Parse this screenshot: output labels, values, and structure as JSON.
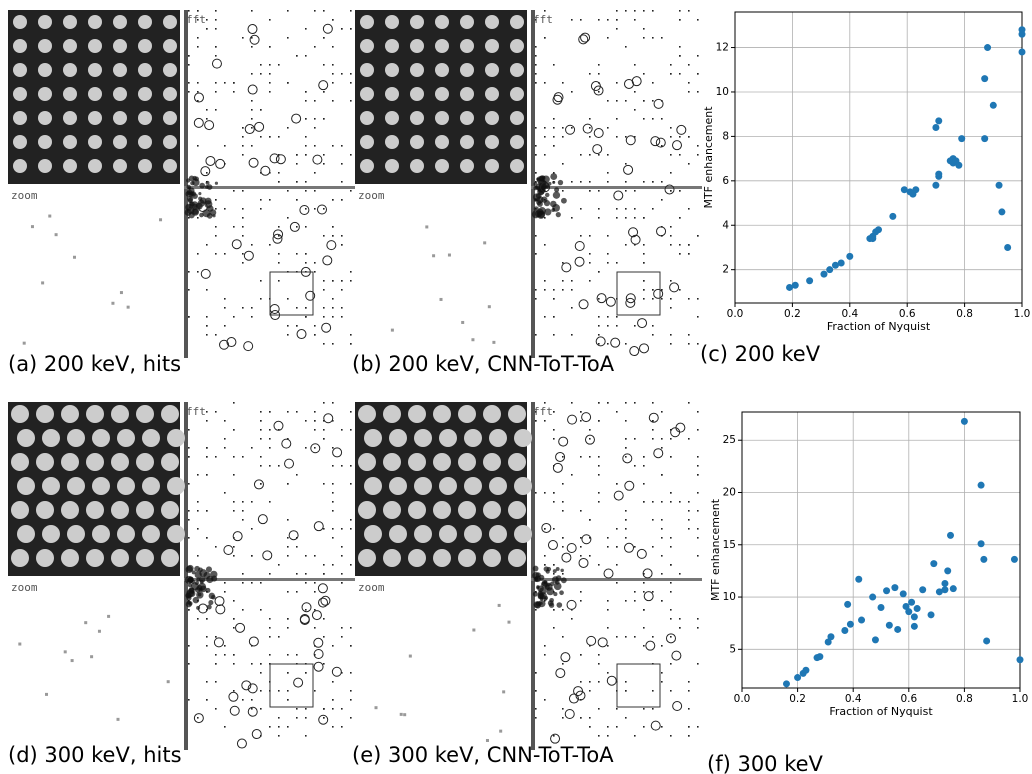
{
  "image_panels": [
    {
      "caption": "(a) 200 keV, hits",
      "zoom_label": "zoom",
      "fft_label": "fft"
    },
    {
      "caption": "(b) 200 keV, CNN-ToT-ToA",
      "zoom_label": "zoom",
      "fft_label": "fft"
    },
    {
      "caption": "(d) 300 keV, hits",
      "zoom_label": "zoom",
      "fft_label": "fft"
    },
    {
      "caption": "(e) 300 keV, CNN-ToT-ToA",
      "zoom_label": "zoom",
      "fft_label": "fft"
    }
  ],
  "chart_data": [
    {
      "type": "scatter",
      "caption": "(c) 200 keV",
      "xlabel": "Fraction of Nyquist",
      "ylabel": "MTF enhancement",
      "color": "#1f77b4",
      "grid": true,
      "xlim": [
        0,
        1
      ],
      "ylim": [
        0.5,
        13.6
      ],
      "xticks": [
        {
          "value": 0,
          "label": "0.0"
        },
        0.2,
        0.4,
        0.6,
        0.8,
        {
          "value": 1,
          "label": "1.0"
        }
      ],
      "yticks": [
        2,
        4,
        6,
        8,
        10,
        12
      ],
      "x": [
        0.19,
        0.21,
        0.26,
        0.31,
        0.33,
        0.35,
        0.37,
        0.4,
        0.47,
        0.48,
        0.49,
        0.5,
        0.48,
        0.55,
        0.59,
        0.61,
        0.62,
        0.63,
        0.7,
        0.71,
        0.71,
        0.7,
        0.71,
        0.75,
        0.76,
        0.76,
        0.77,
        0.78,
        0.79,
        0.87,
        0.87,
        0.88,
        0.9,
        0.92,
        0.93,
        0.95,
        1.0,
        1.0,
        1.0
      ],
      "values": [
        1.2,
        1.3,
        1.5,
        1.8,
        2.0,
        2.2,
        2.3,
        2.6,
        3.4,
        3.5,
        3.7,
        3.8,
        3.4,
        4.4,
        5.6,
        5.5,
        5.4,
        5.6,
        5.8,
        6.2,
        6.3,
        8.4,
        8.7,
        6.9,
        7.0,
        6.8,
        6.9,
        6.7,
        7.9,
        7.9,
        10.6,
        12.0,
        9.4,
        5.8,
        4.6,
        3.0,
        12.8,
        11.8,
        12.6
      ]
    },
    {
      "type": "scatter",
      "caption": "(f) 300 keV",
      "xlabel": "Fraction of Nyquist",
      "ylabel": "MTF enhancement",
      "color": "#1f77b4",
      "grid": true,
      "xlim": [
        0,
        1
      ],
      "ylim": [
        1.3,
        27.7
      ],
      "xticks": [
        {
          "value": 0,
          "label": "0.0"
        },
        0.2,
        0.4,
        0.6,
        0.8,
        {
          "value": 1,
          "label": "1.0"
        }
      ],
      "yticks": [
        5,
        10,
        15,
        20,
        25
      ],
      "x": [
        0.16,
        0.2,
        0.22,
        0.23,
        0.27,
        0.28,
        0.31,
        0.32,
        0.37,
        0.38,
        0.39,
        0.42,
        0.43,
        0.47,
        0.48,
        0.5,
        0.52,
        0.53,
        0.55,
        0.56,
        0.58,
        0.59,
        0.6,
        0.61,
        0.62,
        0.62,
        0.63,
        0.65,
        0.68,
        0.69,
        0.71,
        0.73,
        0.73,
        0.74,
        0.75,
        0.76,
        0.8,
        0.86,
        0.86,
        0.87,
        0.88,
        0.98,
        1.0
      ],
      "values": [
        1.7,
        2.3,
        2.7,
        3.0,
        4.2,
        4.3,
        5.7,
        6.2,
        6.8,
        9.3,
        7.4,
        11.7,
        7.8,
        10.0,
        5.9,
        9.0,
        10.6,
        7.3,
        10.9,
        6.9,
        10.3,
        9.1,
        8.6,
        9.5,
        7.2,
        8.1,
        8.9,
        10.7,
        8.3,
        13.2,
        10.5,
        11.3,
        10.7,
        12.5,
        15.9,
        10.8,
        26.8,
        20.7,
        15.1,
        13.6,
        5.8,
        13.6,
        4.0
      ]
    }
  ]
}
